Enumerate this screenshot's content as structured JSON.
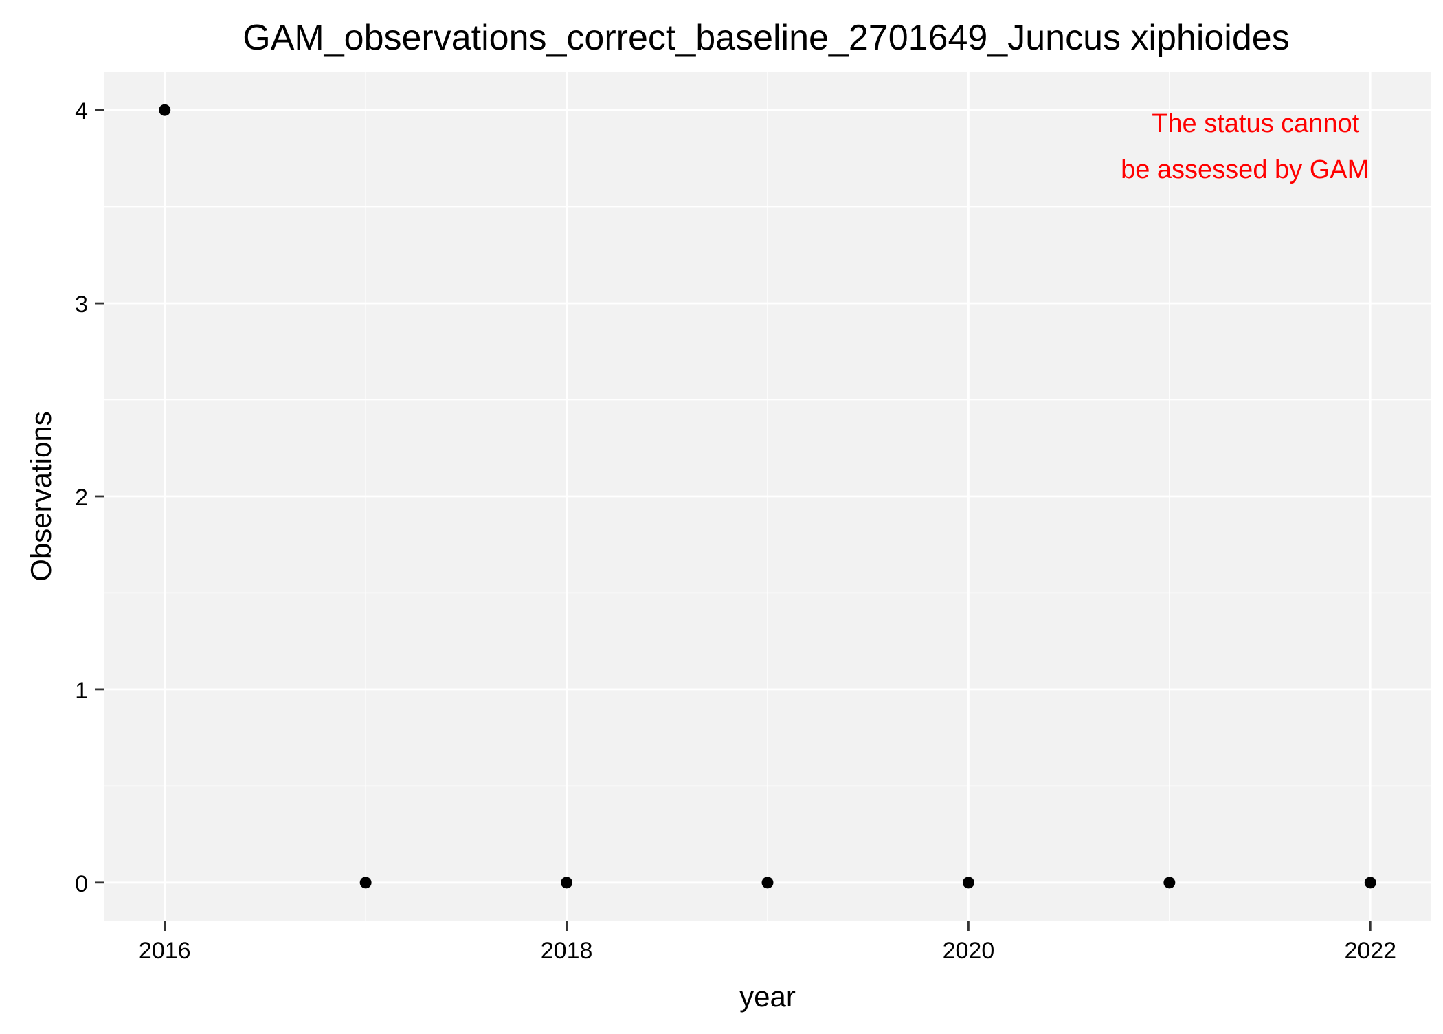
{
  "chart_data": {
    "type": "scatter",
    "title": "GAM_observations_correct_baseline_2701649_Juncus xiphioides",
    "xlabel": "year",
    "ylabel": "Observations",
    "x": [
      2016,
      2017,
      2018,
      2019,
      2020,
      2021,
      2022
    ],
    "y": [
      4,
      0,
      0,
      0,
      0,
      0,
      0
    ],
    "xlim": [
      2015.7,
      2022.3
    ],
    "ylim": [
      -0.2,
      4.2
    ],
    "xticks": [
      2016,
      2018,
      2020,
      2022
    ],
    "yticks": [
      0,
      1,
      2,
      3,
      4
    ],
    "grid": true,
    "legend": "none",
    "annotation": {
      "lines": [
        "The status cannot",
        "be assessed by GAM"
      ],
      "color": "#ff0000",
      "position": "top-right"
    },
    "colors": {
      "panel_background": "#f2f2f2",
      "grid_major": "#ffffff",
      "grid_minor": "#ffffff",
      "points": "#000000",
      "axis_text": "#000000",
      "tick": "#333333"
    }
  }
}
